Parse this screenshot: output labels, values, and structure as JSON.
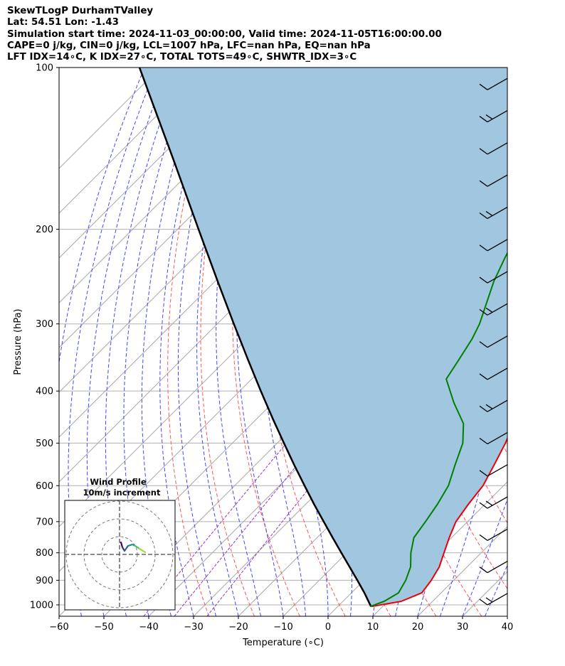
{
  "header": {
    "line1": "SkewTLogP DurhamTValley",
    "line2": "Lat: 54.51   Lon: -1.43",
    "line3": "Simulation start time: 2024-11-03_00:00:00, Valid time: 2024-11-05T16:00:00.00",
    "line4": "CAPE=0 j/kg, CIN=0 j/kg, LCL=1007 hPa, LFC=nan hPa, EQ=nan hPa",
    "line5": "LFT IDX=14∘C, K IDX=27∘C, TOTAL TOTS=49∘C, SHWTR_IDX=3∘C"
  },
  "colors": {
    "temperature": "#e8000b",
    "dewpoint": "#008000",
    "parcel": "#000000",
    "shading": "#a1c6e0",
    "dry_adiabat": "#ff5555",
    "moist_adiabat": "#4444ff",
    "mixing_ratio": "#9933cc",
    "isotherm": "#aaaaaa"
  },
  "chart_data": [
    {
      "type": "line",
      "chart_kind": "skew-T log-P diagram",
      "xlabel": "Temperature (∘C)",
      "ylabel": "Pressure (hPa)",
      "xlim": [
        -60,
        40
      ],
      "ylim": [
        1050,
        100
      ],
      "y_scale": "log",
      "grid": true,
      "x_ticks": [
        -60,
        -50,
        -40,
        -30,
        -20,
        -10,
        0,
        10,
        20,
        30,
        40
      ],
      "x_tick_labels": [
        "−60",
        "−50",
        "−40",
        "−30",
        "−20",
        "−10",
        "0",
        "10",
        "20",
        "30",
        "40"
      ],
      "y_ticks": [
        1000,
        900,
        800,
        700,
        600,
        500,
        400,
        300,
        200,
        100
      ],
      "y_tick_labels": [
        "1000",
        "900",
        "800",
        "700",
        "600",
        "500",
        "400",
        "300",
        "200",
        "100"
      ],
      "series": [
        {
          "key": "temperature",
          "points": [
            [
              1007,
              7.5
            ],
            [
              985,
              13.0
            ],
            [
              950,
              15.7
            ],
            [
              900,
              15.0
            ],
            [
              850,
              13.8
            ],
            [
              800,
              11.7
            ],
            [
              750,
              9.5
            ],
            [
              700,
              7.4
            ],
            [
              650,
              6.3
            ],
            [
              600,
              5.4
            ],
            [
              550,
              3.3
            ],
            [
              500,
              0.9
            ],
            [
              450,
              -2.2
            ],
            [
              400,
              -6.2
            ],
            [
              350,
              -10.9
            ],
            [
              310,
              -15.4
            ],
            [
              300,
              -16.7
            ],
            [
              275,
              -18.0
            ],
            [
              250,
              -18.6
            ],
            [
              225,
              -21.0
            ],
            [
              200,
              -24.8
            ],
            [
              175,
              -29.8
            ],
            [
              150,
              -35.4
            ],
            [
              125,
              -42.0
            ],
            [
              110,
              -47.8
            ],
            [
              100,
              -51.3
            ]
          ]
        },
        {
          "key": "dewpoint",
          "points": [
            [
              1007,
              7.2
            ],
            [
              985,
              9.2
            ],
            [
              950,
              10.5
            ],
            [
              900,
              9.3
            ],
            [
              850,
              7.4
            ],
            [
              800,
              4.3
            ],
            [
              750,
              1.6
            ],
            [
              700,
              0.6
            ],
            [
              650,
              -0.6
            ],
            [
              600,
              -2.3
            ],
            [
              550,
              -5.4
            ],
            [
              500,
              -8.6
            ],
            [
              460,
              -12.8
            ],
            [
              420,
              -19.7
            ],
            [
              380,
              -26.6
            ],
            [
              350,
              -28.1
            ],
            [
              320,
              -29.8
            ],
            [
              300,
              -31.5
            ],
            [
              275,
              -34.5
            ],
            [
              250,
              -37.8
            ],
            [
              225,
              -40.7
            ],
            [
              200,
              -43.5
            ],
            [
              175,
              -47.5
            ],
            [
              150,
              -53.4
            ],
            [
              125,
              -58.9
            ],
            [
              100,
              -63.2
            ]
          ]
        },
        {
          "key": "parcel",
          "points": [
            [
              1007,
              7.4
            ],
            [
              950,
              2.9
            ],
            [
              900,
              -1.5
            ],
            [
              850,
              -6.2
            ],
            [
              800,
              -11.2
            ],
            [
              750,
              -16.5
            ],
            [
              700,
              -22.1
            ],
            [
              650,
              -28.1
            ],
            [
              600,
              -34.4
            ],
            [
              550,
              -41.2
            ],
            [
              500,
              -48.5
            ],
            [
              450,
              -56.5
            ],
            [
              400,
              -65.3
            ],
            [
              350,
              -75.1
            ],
            [
              300,
              -86.3
            ],
            [
              250,
              -99.4
            ],
            [
              200,
              -115.3
            ],
            [
              150,
              -135.7
            ],
            [
              100,
              -164.6
            ]
          ]
        }
      ],
      "wind_barbs_right": true
    },
    {
      "type": "line",
      "title": "Wind Profile",
      "subtitle": "10m/s increment",
      "colormap": "viridis"
    }
  ]
}
